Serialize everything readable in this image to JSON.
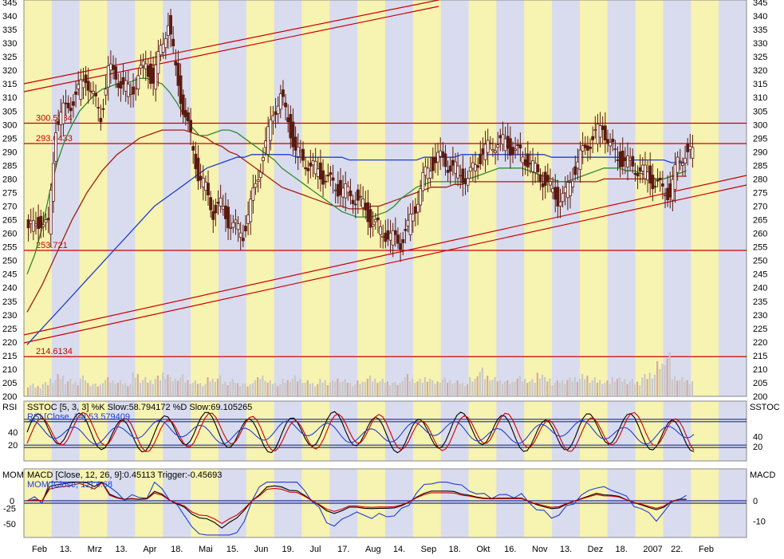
{
  "chart_data": [
    {
      "type": "candlestick",
      "panel": "price",
      "y_axis_right": {
        "min": 200,
        "max": 345,
        "step": 5
      },
      "date_ticks": [
        "Feb",
        "13.",
        "Mrz",
        "13.",
        "Apr",
        "18.",
        "Mai",
        "15.",
        "Jun",
        "19.",
        "Jul",
        "17.",
        "Aug",
        "14.",
        "Sep",
        "18.",
        "Okt",
        "16.",
        "Nov",
        "13.",
        "Dez",
        "18.",
        "2007",
        "22.",
        "Feb"
      ],
      "horizontal_levels": [
        {
          "label": "300.5334",
          "value": 300.5334
        },
        {
          "label": "293.0433",
          "value": 293.0433
        },
        {
          "label": "253.721",
          "value": 253.721
        },
        {
          "label": "214.6134",
          "value": 214.6134
        }
      ],
      "close_series": [
        262,
        265,
        262,
        300,
        305,
        308,
        312,
        318,
        310,
        303,
        320,
        318,
        314,
        312,
        318,
        322,
        316,
        328,
        338,
        320,
        306,
        295,
        282,
        276,
        268,
        270,
        265,
        262,
        260,
        270,
        282,
        292,
        305,
        310,
        302,
        290,
        287,
        285,
        283,
        280,
        278,
        276,
        275,
        273,
        270,
        265,
        262,
        260,
        258,
        257,
        262,
        270,
        280,
        285,
        288,
        286,
        284,
        282,
        280,
        285,
        290,
        292,
        294,
        293,
        291,
        289,
        287,
        283,
        280,
        276,
        273,
        274,
        282,
        288,
        293,
        296,
        300,
        292,
        288,
        286,
        285,
        283,
        282,
        278,
        276,
        275,
        286,
        290,
        289
      ],
      "ma_green": [
        245,
        252,
        262,
        275,
        286,
        294,
        300,
        305,
        308,
        311,
        313,
        314,
        315,
        315,
        316,
        317,
        317,
        316,
        315,
        312,
        308,
        303,
        299,
        296,
        296,
        297,
        298,
        298,
        297,
        295,
        293,
        291,
        289,
        287,
        284,
        282,
        280,
        278,
        276,
        274,
        272,
        270,
        268,
        267,
        266,
        266,
        266,
        267,
        268,
        270,
        273,
        275,
        277,
        278,
        279,
        279,
        279,
        279,
        279,
        280,
        281,
        282,
        283,
        284,
        284,
        284,
        284,
        283,
        282,
        281,
        280,
        279,
        279,
        280,
        281,
        282,
        283,
        284,
        284,
        284,
        283,
        283,
        282,
        281,
        280,
        280,
        281,
        282,
        283
      ],
      "ma_red": [
        231,
        236,
        241,
        247,
        253,
        259,
        265,
        270,
        275,
        279,
        283,
        286,
        289,
        291,
        293,
        295,
        296,
        297,
        298,
        298,
        298,
        298,
        297,
        296,
        295,
        293,
        292,
        290,
        289,
        287,
        285,
        283,
        281,
        279,
        277,
        276,
        275,
        274,
        273,
        272,
        271,
        270,
        270,
        269,
        269,
        269,
        270,
        270,
        271,
        272,
        273,
        274,
        275,
        276,
        277,
        277,
        277,
        278,
        278,
        279,
        279,
        279,
        279,
        279,
        279,
        279,
        279,
        279,
        279,
        279,
        279,
        279,
        279,
        279,
        279,
        279,
        279,
        280,
        280,
        280,
        280,
        280,
        280,
        280,
        280,
        280,
        281,
        281,
        281
      ],
      "ma_blue": [
        219,
        222,
        225,
        228,
        231,
        234,
        237,
        240,
        243,
        246,
        249,
        252,
        255,
        258,
        261,
        264,
        267,
        270,
        272,
        274,
        276,
        278,
        280,
        282,
        284,
        285,
        286,
        287,
        288,
        288,
        289,
        289,
        289,
        289,
        289,
        289,
        288,
        288,
        288,
        288,
        288,
        288,
        288,
        287,
        287,
        287,
        287,
        287,
        287,
        287,
        287,
        287,
        287,
        288,
        288,
        288,
        288,
        288,
        289,
        289,
        289,
        289,
        289,
        289,
        289,
        289,
        289,
        289,
        289,
        289,
        288,
        288,
        288,
        288,
        288,
        288,
        288,
        288,
        288,
        288,
        287,
        287,
        287,
        287,
        287,
        287,
        286,
        286,
        286
      ],
      "volume": [
        8,
        7,
        9,
        12,
        14,
        11,
        10,
        13,
        9,
        8,
        12,
        11,
        10,
        9,
        15,
        12,
        11,
        13,
        16,
        12,
        14,
        11,
        10,
        9,
        12,
        13,
        10,
        11,
        9,
        8,
        12,
        14,
        10,
        9,
        11,
        13,
        12,
        10,
        9,
        11,
        10,
        12,
        11,
        9,
        10,
        13,
        12,
        11,
        10,
        9,
        14,
        12,
        11,
        13,
        10,
        12,
        11,
        10,
        9,
        12,
        18,
        14,
        12,
        11,
        10,
        13,
        12,
        11,
        16,
        12,
        10,
        11,
        12,
        13,
        14,
        12,
        11,
        10,
        13,
        12,
        11,
        10,
        14,
        16,
        22,
        28,
        14,
        12,
        11
      ]
    },
    {
      "type": "line",
      "panel": "oscillators",
      "labels": {
        "left": "RSI",
        "right": "SSTOC",
        "legend_sstoc": "SSTOC [5, 3, 3] %K Slow:58.794172 %D Slow:69.105265",
        "legend_rsi": "RSI [Close, 14]:53.579409"
      },
      "left_ticks": [
        "40",
        "20"
      ],
      "right_ticks": [
        "40",
        "20"
      ],
      "levels": [
        80,
        20
      ]
    },
    {
      "type": "line",
      "panel": "momentum",
      "labels": {
        "left": "MOM",
        "right": "MACD",
        "legend_macd": "MACD [Close, 12, 26, 9]:0.45113 Trigger:-0.45693",
        "legend_mom": "MOM [Close, 12]:4.68"
      },
      "left_ticks": [
        "0",
        "-25",
        "-50"
      ],
      "right_ticks": [
        "0",
        "-10"
      ]
    }
  ],
  "colors": {
    "band_yellow": "#f7f3b0",
    "band_blue": "#d9dcee",
    "grid_red": "#cc0000",
    "candle": "#5a1a10",
    "ma_green": "#2e8b2e",
    "ma_red": "#a02010",
    "ma_blue": "#1f3fd0",
    "volume_bar": "#c8c8c8"
  }
}
